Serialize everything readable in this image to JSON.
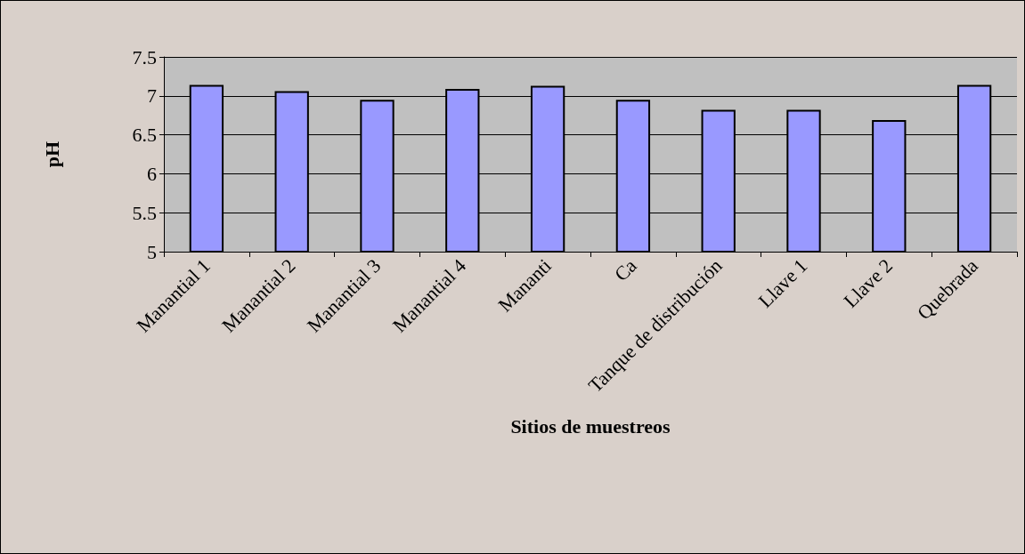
{
  "chart_data": {
    "type": "bar",
    "categories": [
      "Manantial 1",
      "Manantial 2",
      "Manantial 3",
      "Manantial 4",
      "Mananti",
      "Ca",
      "Tanque de distribución",
      "Llave 1",
      "Llave 2",
      "Quebrada"
    ],
    "values": [
      7.14,
      7.06,
      6.95,
      7.09,
      7.13,
      6.95,
      6.82,
      6.82,
      6.69,
      7.14
    ],
    "color": "#9999ff",
    "xlabel": "Sitios de muestreos",
    "ylabel": "pH",
    "ylim": [
      5,
      7.5
    ],
    "yticks": [
      5,
      5.5,
      6,
      6.5,
      7,
      7.5
    ],
    "grid": "y"
  }
}
